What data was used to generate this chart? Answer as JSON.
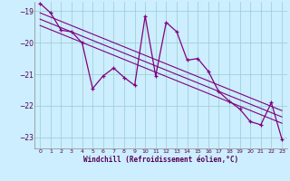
{
  "xlabel": "Windchill (Refroidissement éolien,°C)",
  "background_color": "#cceeff",
  "line_color": "#800080",
  "grid_color": "#99cccc",
  "xlim": [
    -0.5,
    23.5
  ],
  "ylim": [
    -23.35,
    -18.7
  ],
  "yticks": [
    -23,
    -22,
    -21,
    -20,
    -19
  ],
  "xticks": [
    0,
    1,
    2,
    3,
    4,
    5,
    6,
    7,
    8,
    9,
    10,
    11,
    12,
    13,
    14,
    15,
    16,
    17,
    18,
    19,
    20,
    21,
    22,
    23
  ],
  "line1_x": [
    0,
    1,
    2,
    3,
    4,
    5,
    6,
    7,
    8,
    9,
    10,
    11,
    12,
    13,
    14,
    15,
    16,
    17,
    18,
    19,
    20,
    21,
    22,
    23
  ],
  "line1_y": [
    -18.75,
    -19.05,
    -19.6,
    -19.65,
    -20.0,
    -21.45,
    -21.05,
    -20.8,
    -21.1,
    -21.35,
    -19.15,
    -21.05,
    -19.35,
    -19.65,
    -20.55,
    -20.5,
    -20.9,
    -21.55,
    -21.85,
    -22.1,
    -22.5,
    -22.6,
    -21.9,
    -23.05
  ],
  "trend1_x": [
    0,
    23
  ],
  "trend1_y": [
    -19.05,
    -22.15
  ],
  "trend2_x": [
    0,
    23
  ],
  "trend2_y": [
    -19.25,
    -22.35
  ],
  "trend3_x": [
    0,
    23
  ],
  "trend3_y": [
    -19.45,
    -22.55
  ]
}
